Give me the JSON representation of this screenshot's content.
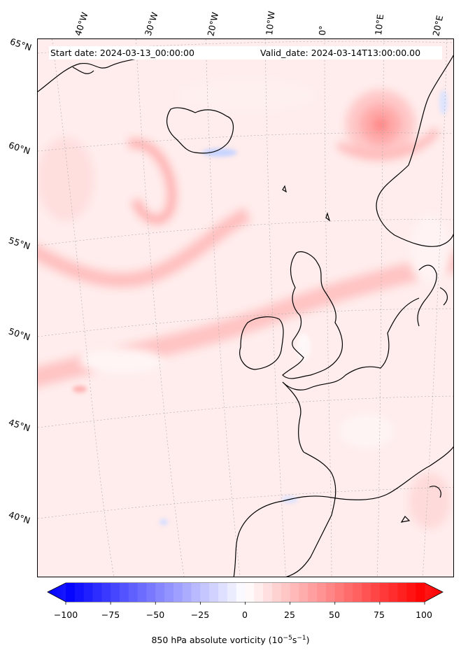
{
  "header": {
    "start_date": "Start date: 2024-03-13_00:00:00",
    "valid_date": "Valid_date: 2024-03-14T13:00:00.00"
  },
  "longitude_labels": [
    "40°W",
    "30°W",
    "20°W",
    "10°W",
    "0°",
    "10°E",
    "20°E"
  ],
  "latitude_labels": [
    "65°N",
    "60°N",
    "55°N",
    "50°N",
    "45°N",
    "40°N"
  ],
  "colorbar": {
    "ticks": [
      "−100",
      "−75",
      "−50",
      "−25",
      "0",
      "25",
      "50",
      "75",
      "100"
    ],
    "min": -100,
    "max": 100,
    "label_text": "850 hPa absolute vorticity (10",
    "label_exp1": "−5",
    "label_mid": "s",
    "label_exp2": "−1",
    "label_end": ")",
    "colormap": "bwr",
    "color_low": "#0000ff",
    "color_mid": "#ffffff",
    "color_high": "#ff0000"
  },
  "colors": {
    "background_field": "#ffecec",
    "coastline": "#000000",
    "gridline": "#aaaaaa"
  }
}
